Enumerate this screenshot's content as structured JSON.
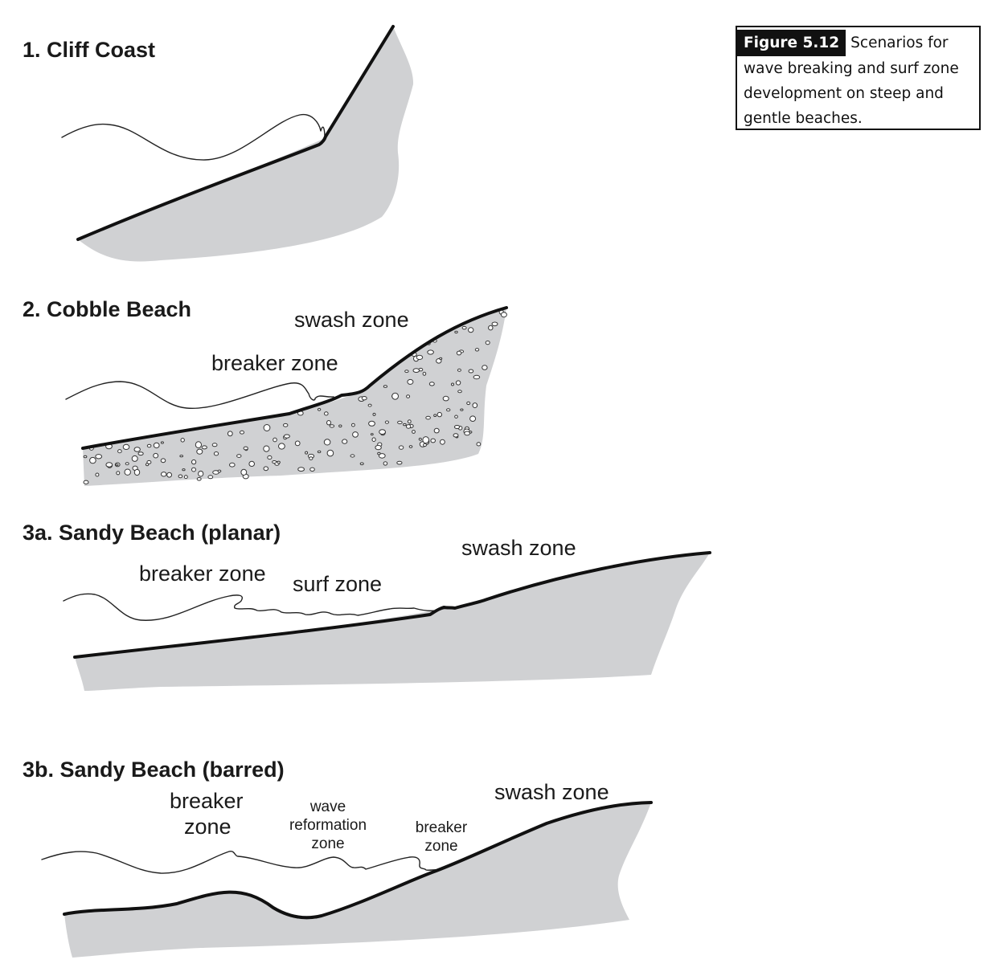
{
  "caption": {
    "tag": "Figure 5.12",
    "text": "Scenarios for wave breaking and surf zone development on steep and gentle beaches."
  },
  "panels": [
    {
      "id": "cliff",
      "title": "1. Cliff Coast",
      "labels": []
    },
    {
      "id": "cobble",
      "title": "2. Cobble Beach",
      "labels": [
        "swash zone",
        "breaker zone"
      ]
    },
    {
      "id": "planar",
      "title": "3a. Sandy Beach (planar)",
      "labels": [
        "swash zone",
        "breaker zone",
        "surf zone"
      ]
    },
    {
      "id": "barred",
      "title": "3b. Sandy Beach (barred)",
      "labels": [
        "breaker",
        "zone",
        "wave",
        "reformation",
        "zone",
        "breaker",
        "zone",
        "swash zone"
      ]
    }
  ],
  "colors": {
    "ground": "#d0d1d3",
    "bed_line": "#111111",
    "water_line": "#222222"
  }
}
